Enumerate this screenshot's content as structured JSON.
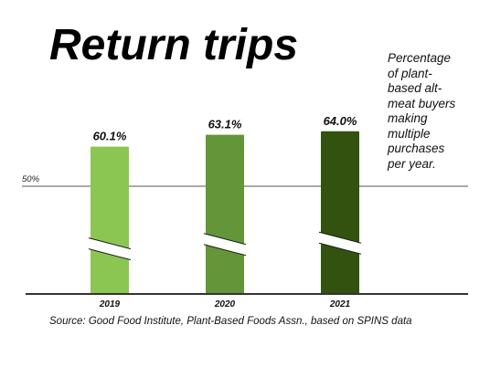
{
  "chart_data": {
    "type": "bar",
    "title": "Return trips",
    "subtitle": "Percentage of plant-based alt-meat buyers making multiple purchases per year.",
    "subtitle_lines": [
      "Percentage",
      "of plant-",
      "based alt-",
      "meat buyers",
      "making",
      "multiple",
      "purchases",
      "per year."
    ],
    "source": "Source: Good Food Institute, Plant-Based Foods Assn., based on SPINS data",
    "categories": [
      "2019",
      "2020",
      "2021"
    ],
    "values": [
      60.1,
      63.1,
      64.0
    ],
    "value_labels": [
      "60.1%",
      "63.1%",
      "64.0%"
    ],
    "colors": [
      "#8bc653",
      "#649538",
      "#335210"
    ],
    "reference_line": {
      "value": 50,
      "label": "50%"
    },
    "axis_break": true,
    "grid": false,
    "legend": "none"
  }
}
